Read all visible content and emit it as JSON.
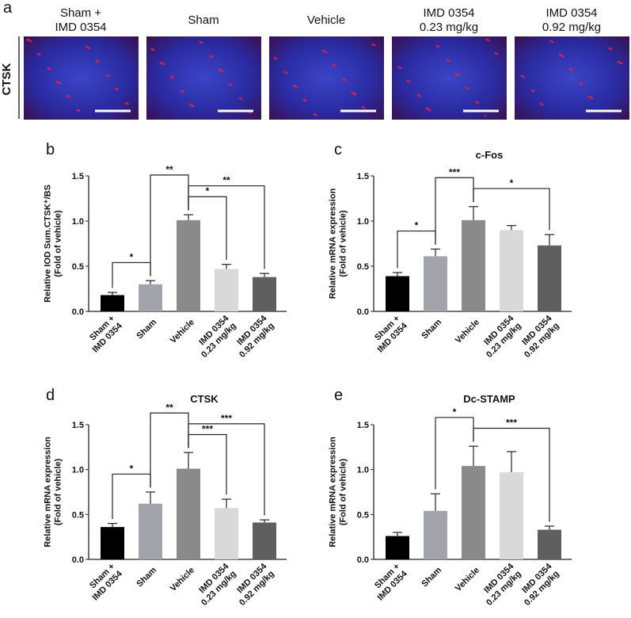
{
  "panel_a": {
    "label": "a",
    "row_label": "CTSK",
    "columns": [
      "Sham +\nIMD 0354",
      "Sham",
      "Vehicle",
      "IMD 0354\n0.23 mg/kg",
      "IMD 0354\n0.92 mg/kg"
    ]
  },
  "chart_data": [
    {
      "type": "bar",
      "panel_label": "b",
      "ylabel": "Relative IOD Sum.CTSK⁺/BS\n(Fold of vehicle)",
      "categories": [
        "Sham +\nIMD 0354",
        "Sham",
        "Vehicle",
        "IMD 0354\n0.23 mg/kg",
        "IMD 0354\n0.92 mg/kg"
      ],
      "values": [
        0.18,
        0.3,
        1.01,
        0.47,
        0.38
      ],
      "errors": [
        0.03,
        0.04,
        0.06,
        0.05,
        0.04
      ],
      "colors": [
        "#000000",
        "#a3a3ab",
        "#8a8a8a",
        "#d9d9d9",
        "#5f5f5f"
      ],
      "ylim": [
        0,
        1.5
      ],
      "yticks": [
        {
          "value": 0,
          "label": "0.0"
        },
        0.5,
        {
          "value": 1,
          "label": "1.0"
        },
        1.5
      ],
      "significance": [
        {
          "between": [
            2,
            3
          ],
          "label": "*"
        },
        {
          "between": [
            2,
            4
          ],
          "label": "**"
        },
        {
          "between": [
            0,
            1
          ],
          "label": "*"
        },
        {
          "between": [
            1,
            2
          ],
          "label": "**"
        }
      ]
    },
    {
      "type": "bar",
      "panel_label": "c",
      "title": "c-Fos",
      "ylabel": "Relative mRNA expression\n(Fold of vehicle)",
      "categories": [
        "Sham +\nIMD 0354",
        "Sham",
        "Vehicle",
        "IMD 0354\n0.23 mg/kg",
        "IMD 0354\n0.92 mg/kg"
      ],
      "values": [
        0.39,
        0.61,
        1.01,
        0.9,
        0.73
      ],
      "errors": [
        0.04,
        0.08,
        0.15,
        0.05,
        0.12
      ],
      "colors": [
        "#000000",
        "#a3a3ab",
        "#8a8a8a",
        "#d9d9d9",
        "#5f5f5f"
      ],
      "ylim": [
        0,
        1.5
      ],
      "yticks": [
        {
          "value": 0,
          "label": "0.0"
        },
        0.5,
        {
          "value": 1,
          "label": "1.0"
        },
        1.5
      ],
      "significance": [
        {
          "between": [
            0,
            1
          ],
          "label": "*"
        },
        {
          "between": [
            2,
            4
          ],
          "label": "*"
        },
        {
          "between": [
            1,
            2
          ],
          "label": "***"
        }
      ]
    },
    {
      "type": "bar",
      "panel_label": "d",
      "title": "CTSK",
      "ylabel": "Relative mRNA expression\n(Fold of vehicle)",
      "categories": [
        "Sham +\nIMD 0354",
        "Sham",
        "Vehicle",
        "IMD 0354\n0.23 mg/kg",
        "IMD 0354\n0.92 mg/kg"
      ],
      "values": [
        0.36,
        0.62,
        1.01,
        0.57,
        0.41
      ],
      "errors": [
        0.04,
        0.13,
        0.18,
        0.1,
        0.03
      ],
      "colors": [
        "#000000",
        "#a3a3ab",
        "#8a8a8a",
        "#d9d9d9",
        "#5f5f5f"
      ],
      "ylim": [
        0,
        1.5
      ],
      "yticks": [
        {
          "value": 0,
          "label": "0.0"
        },
        0.5,
        {
          "value": 1,
          "label": "1.0"
        },
        1.5
      ],
      "significance": [
        {
          "between": [
            0,
            1
          ],
          "label": "*"
        },
        {
          "between": [
            2,
            3
          ],
          "label": "***"
        },
        {
          "between": [
            2,
            4
          ],
          "label": "***"
        },
        {
          "between": [
            1,
            2
          ],
          "label": "**"
        }
      ]
    },
    {
      "type": "bar",
      "panel_label": "e",
      "title": "Dc-STAMP",
      "ylabel": "Relative mRNA expression\n(Fold of vehicle)",
      "categories": [
        "Sham +\nIMD 0354",
        "Sham",
        "Vehicle",
        "IMD 0354\n0.23 mg/kg",
        "IMD 0354\n0.92 mg/kg"
      ],
      "values": [
        0.26,
        0.54,
        1.04,
        0.97,
        0.33
      ],
      "errors": [
        0.04,
        0.19,
        0.22,
        0.23,
        0.04
      ],
      "colors": [
        "#000000",
        "#a3a3ab",
        "#8a8a8a",
        "#d9d9d9",
        "#5f5f5f"
      ],
      "ylim": [
        0,
        1.5
      ],
      "yticks": [
        {
          "value": 0,
          "label": "0.0"
        },
        0.5,
        {
          "value": 1,
          "label": "1.0"
        },
        1.5
      ],
      "significance": [
        {
          "between": [
            2,
            4
          ],
          "label": "***"
        },
        {
          "between": [
            1,
            2
          ],
          "label": "*"
        }
      ]
    }
  ]
}
